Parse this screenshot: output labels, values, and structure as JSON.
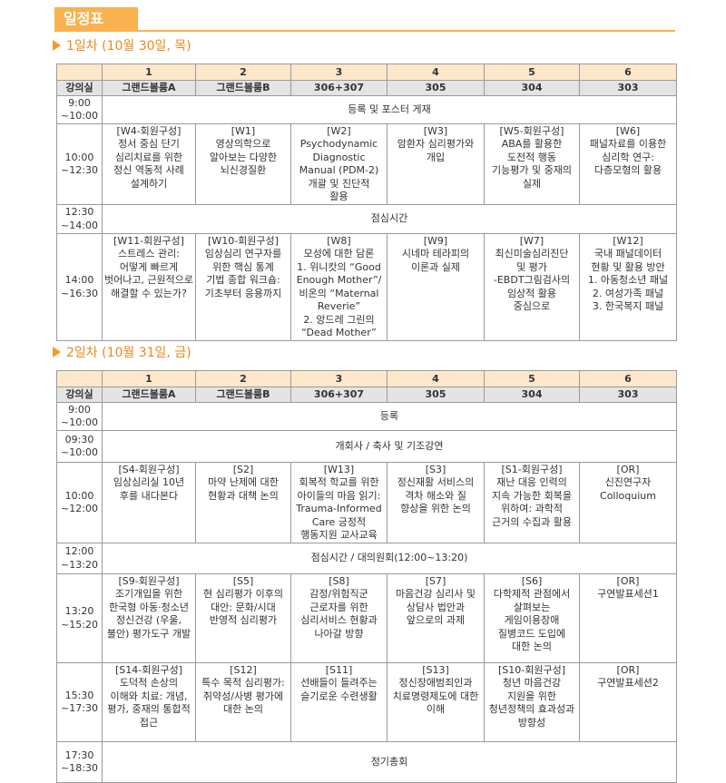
{
  "header": {
    "title": "일정표"
  },
  "days": [
    {
      "title": "1일차 (10월 30일, 목)",
      "columns": [
        "1",
        "2",
        "3",
        "4",
        "5",
        "6"
      ],
      "rooms_label": "강의실",
      "rooms": [
        "그랜드볼룸A",
        "그랜드볼룸B",
        "306+307",
        "305",
        "304",
        "303"
      ],
      "rows": [
        {
          "time": [
            "9:00",
            "~10:00"
          ],
          "note": [
            "등록 및 포스터 게재"
          ]
        },
        {
          "time": [
            "10:00",
            "~12:30"
          ],
          "sessions": [
            [
              "[W4-회원구성]",
              "정서 중심 단기",
              "심리치료를 위한",
              "정신 역동적 사례",
              "설계하기"
            ],
            [
              "[W1]",
              "영상의학으로",
              "알아보는 다양한",
              "뇌신경질환"
            ],
            [
              "[W2]",
              "Psychodynamic",
              "Diagnostic",
              "Manual (PDM-2)",
              "개괄 및 진단적",
              "활용"
            ],
            [
              "[W3]",
              "암환자 심리평가와",
              "개입"
            ],
            [
              "[W5-회원구성]",
              "ABA를 활용한",
              "도전적 행동",
              "기능평가 및 중재의",
              "실제"
            ],
            [
              "[W6]",
              "패널자료를 이용한",
              "심리학 연구:",
              "다층모형의 활용"
            ]
          ]
        },
        {
          "time": [
            "12:30",
            "~14:00"
          ],
          "note": [
            "점심시간"
          ]
        },
        {
          "time": [
            "14:00",
            "~16:30"
          ],
          "sessions": [
            [
              "[W11-회원구성]",
              "스트레스 관리:",
              "어떻게 빠르게",
              "벗어나고, 근원적으로",
              "해결할 수 있는가?"
            ],
            [
              "[W10-회원구성]",
              "임상심리 연구자를",
              "위한 핵심 통계",
              "기법 종합 워크숍:",
              "기초부터 응용까지"
            ],
            [
              "[W8]",
              "모성에 대한 담론",
              "1. 위니캇의 “Good",
              "Enough Mother”/",
              "비온의 “Maternal",
              "Reverie”",
              "2. 앙드레 그린의",
              "“Dead Mother”"
            ],
            [
              "[W9]",
              "시네마 테라피의",
              "이론과 실제"
            ],
            [
              "[W7]",
              "최신미술심리진단",
              "및 평가",
              "-EBDT그림검사의",
              "임상적 활용",
              "중심으로"
            ],
            [
              "[W12]",
              "국내 패널데이터",
              "현황 및 활용 방안",
              "1. 아동청소년 패널",
              "2. 여성가족 패널",
              "3. 한국복지 패널"
            ]
          ]
        }
      ]
    },
    {
      "title": "2일차 (10월 31일, 금)",
      "columns": [
        "1",
        "2",
        "3",
        "4",
        "5",
        "6"
      ],
      "rooms_label": "강의실",
      "rooms": [
        "그랜드볼룸A",
        "그랜드볼룸B",
        "306+307",
        "305",
        "304",
        "303"
      ],
      "rows": [
        {
          "time": [
            "9:00",
            "~10:00"
          ],
          "note": [
            "등록"
          ]
        },
        {
          "time": [
            "09:30",
            "~10:00"
          ],
          "note": [
            "개회사 / 축사 및 기조강연"
          ]
        },
        {
          "time": [
            "10:00",
            "~12:00"
          ],
          "sessions": [
            [
              "[S4-회원구성]",
              "임상심리실 10년",
              "후를 내다본다"
            ],
            [
              "[S2]",
              "마약 난제에 대한",
              "현황과 대책 논의"
            ],
            [
              "[W13]",
              "회복적 학교를 위한",
              "아이들의 마음 읽기:",
              "Trauma-Informed",
              "Care 긍정적",
              "행동지원 교사교육"
            ],
            [
              "[S3]",
              "정신재활 서비스의",
              "격차 해소와 질",
              "향상을 위한 논의"
            ],
            [
              "[S1-회원구성]",
              "재난 대응 인력의",
              "지속 가능한 회복을",
              "위하여: 과학적",
              "근거의 수집과 활용"
            ],
            [
              "[OR]",
              "신진연구자",
              "Colloquium"
            ]
          ]
        },
        {
          "time": [
            "12:00",
            "~13:20"
          ],
          "note": [
            "점심시간 / 대의원회(12:00~13:20)"
          ]
        },
        {
          "time": [
            "13:20",
            "~15:20"
          ],
          "sessions": [
            [
              "[S9-회원구성]",
              "조기개입을 위한",
              "한국형 아동·청소년",
              "정신건강 (우울,",
              "불안) 평가도구 개발"
            ],
            [
              "[S5]",
              "현 심리평가 이후의",
              "대안: 문화/시대",
              "반영적 심리평가"
            ],
            [
              "[S8]",
              "감정/위험직군",
              "근로자를 위한",
              "심리서비스 현황과",
              "나아갈 방향"
            ],
            [
              "[S7]",
              "마음건강 심리사 및",
              "상담사 법안과",
              "앞으로의 과제"
            ],
            [
              "[S6]",
              "다학제적 관점에서",
              "살펴보는",
              "게임이용장애",
              "질병코드 도입에",
              "대한 논의"
            ],
            [
              "[OR]",
              "구연발표세션1"
            ]
          ]
        },
        {
          "time": [
            "15:30",
            "~17:30"
          ],
          "sessions": [
            [
              "[S14-회원구성]",
              "도덕적 손상의",
              "이해와 치료: 개념,",
              "평가, 중재의 통합적",
              "접근"
            ],
            [
              "[S12]",
              "특수 목적 심리평가:",
              "취약성/사병 평가에",
              "대한 논의"
            ],
            [
              "[S11]",
              "선배들이 들려주는",
              "슬기로운 수련생활"
            ],
            [
              "[S13]",
              "정신장애범죄인과",
              "치료명령제도에 대한",
              "이해"
            ],
            [
              "[S10-회원구성]",
              "청년 마음건강",
              "지원을 위한",
              "청년정책의 효과성과",
              "방향성"
            ],
            [
              "[OR]",
              "구연발표세션2"
            ]
          ]
        },
        {
          "time": [
            "17:30",
            "~18:30"
          ],
          "note": [
            "정기총회"
          ]
        }
      ]
    }
  ]
}
